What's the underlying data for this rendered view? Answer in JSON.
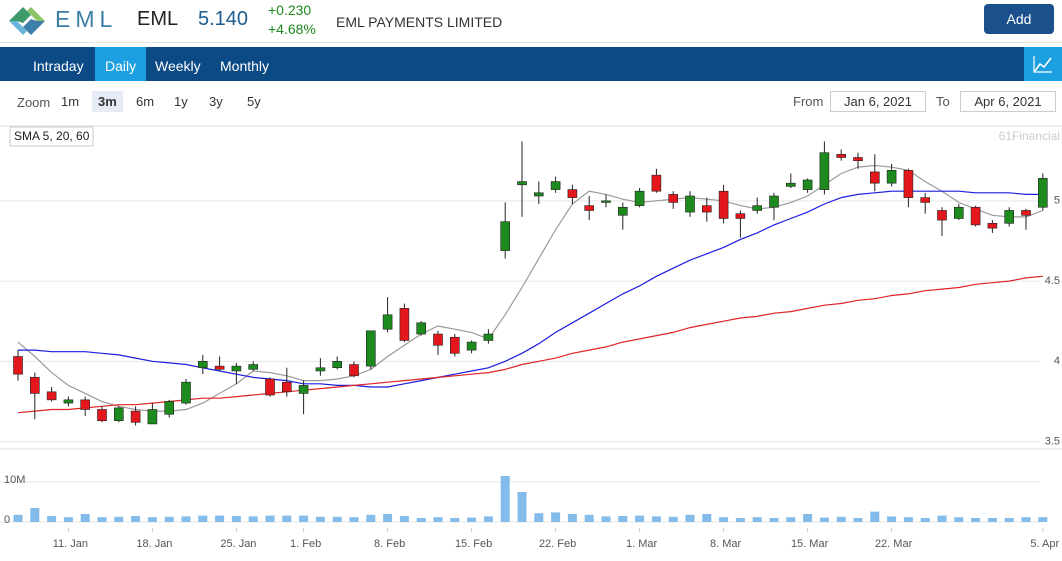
{
  "header": {
    "logo_text": "EML",
    "ticker": "EML",
    "price": "5.140",
    "change": "+0.230",
    "change_pct": "+4.68%",
    "company": "EML PAYMENTS LIMITED",
    "add_button": "Add"
  },
  "tabs": {
    "items": [
      "Intraday",
      "Daily",
      "Weekly",
      "Monthly"
    ],
    "active": 1
  },
  "zoom": {
    "label": "Zoom",
    "buttons": [
      "1m",
      "3m",
      "6m",
      "1y",
      "3y",
      "5y"
    ],
    "active": 1,
    "from_label": "From",
    "from": "Jan 6, 2021",
    "to_label": "To",
    "to": "Apr 6, 2021"
  },
  "chart_data": {
    "type": "candlestick",
    "legend_label": "SMA 5, 20, 60",
    "credit": "61Financial",
    "categories": [
      null,
      null,
      null,
      "11. Jan",
      null,
      null,
      null,
      null,
      "18. Jan",
      null,
      null,
      null,
      null,
      "25. Jan",
      null,
      null,
      null,
      "1. Feb",
      null,
      null,
      null,
      null,
      "8. Feb",
      null,
      null,
      null,
      null,
      "15. Feb",
      null,
      null,
      null,
      null,
      "22. Feb",
      null,
      null,
      null,
      null,
      "1. Mar",
      null,
      null,
      null,
      null,
      "8. Mar",
      null,
      null,
      null,
      null,
      "15. Mar",
      null,
      null,
      null,
      null,
      "22. Mar",
      null,
      null,
      null,
      null,
      null,
      null,
      null,
      null,
      "5. Apr"
    ],
    "open": [
      4.03,
      3.9,
      3.81,
      3.74,
      3.76,
      3.7,
      3.63,
      3.69,
      3.61,
      3.67,
      3.74,
      3.96,
      3.97,
      3.94,
      3.95,
      3.89,
      3.87,
      3.8,
      3.94,
      3.96,
      3.98,
      3.97,
      4.2,
      4.33,
      4.17,
      4.17,
      4.15,
      4.07,
      4.13,
      4.69,
      5.1,
      5.03,
      5.07,
      5.07,
      4.97,
      4.99,
      4.91,
      4.97,
      5.16,
      5.04,
      4.93,
      4.97,
      5.06,
      4.92,
      4.94,
      4.96,
      5.09,
      5.07,
      5.07,
      5.29,
      5.27,
      5.18,
      5.11,
      5.19,
      5.02,
      4.94,
      4.89,
      4.96,
      4.86,
      4.86,
      4.94,
      4.96
    ],
    "high": [
      4.07,
      3.93,
      3.84,
      3.78,
      3.78,
      3.72,
      3.72,
      3.72,
      3.74,
      3.76,
      3.89,
      4.04,
      4.03,
      3.99,
      4.0,
      3.9,
      3.96,
      3.88,
      4.02,
      4.03,
      4.0,
      4.19,
      4.4,
      4.36,
      4.25,
      4.19,
      4.17,
      4.13,
      4.2,
      4.99,
      5.37,
      5.12,
      5.15,
      5.1,
      5.03,
      5.04,
      4.99,
      5.08,
      5.2,
      5.06,
      5.06,
      5.02,
      5.1,
      4.94,
      5.02,
      5.05,
      5.17,
      5.14,
      5.37,
      5.32,
      5.3,
      5.29,
      5.23,
      5.2,
      5.05,
      4.96,
      4.98,
      4.97,
      4.88,
      4.96,
      4.95,
      5.17
    ],
    "low": [
      3.88,
      3.64,
      3.75,
      3.72,
      3.66,
      3.62,
      3.62,
      3.6,
      3.61,
      3.65,
      3.73,
      3.92,
      3.94,
      3.86,
      3.94,
      3.78,
      3.78,
      3.67,
      3.91,
      3.95,
      3.9,
      3.95,
      4.18,
      4.12,
      4.16,
      4.04,
      4.03,
      4.05,
      4.11,
      4.64,
      4.9,
      4.98,
      5.05,
      4.98,
      4.88,
      4.96,
      4.82,
      4.96,
      5.05,
      4.95,
      4.9,
      4.87,
      4.86,
      4.77,
      4.92,
      4.88,
      5.08,
      5.05,
      5.04,
      5.25,
      5.2,
      5.06,
      5.09,
      4.96,
      4.92,
      4.78,
      4.88,
      4.84,
      4.8,
      4.84,
      4.82,
      4.94
    ],
    "close": [
      3.92,
      3.8,
      3.76,
      3.76,
      3.7,
      3.63,
      3.71,
      3.62,
      3.7,
      3.75,
      3.87,
      4.0,
      3.95,
      3.97,
      3.98,
      3.79,
      3.81,
      3.85,
      3.96,
      4.0,
      3.91,
      4.19,
      4.29,
      4.13,
      4.24,
      4.1,
      4.05,
      4.12,
      4.17,
      4.87,
      5.12,
      5.05,
      5.12,
      5.02,
      4.94,
      5.0,
      4.96,
      5.06,
      5.06,
      4.99,
      5.03,
      4.93,
      4.89,
      4.89,
      4.97,
      5.03,
      5.11,
      5.13,
      5.3,
      5.27,
      5.25,
      5.11,
      5.19,
      5.02,
      4.99,
      4.88,
      4.96,
      4.85,
      4.83,
      4.94,
      4.91,
      5.14
    ],
    "up_color": "#1d8a1d",
    "down_color": "#e3171c",
    "series": [
      {
        "color": "#9a9a9a",
        "values": [
          4.12,
          4.03,
          3.93,
          3.85,
          3.8,
          3.75,
          3.72,
          3.7,
          3.69,
          3.69,
          3.7,
          3.74,
          3.8,
          3.86,
          3.94,
          3.93,
          3.91,
          3.88,
          3.88,
          3.89,
          3.91,
          3.95,
          4.03,
          4.1,
          4.17,
          4.22,
          4.2,
          4.18,
          4.14,
          4.29,
          4.46,
          4.64,
          4.82,
          4.98,
          5.06,
          5.04,
          5.01,
          4.99,
          5.0,
          5.01,
          5.02,
          5.01,
          5.0,
          4.97,
          4.95,
          4.96,
          4.99,
          5.03,
          5.1,
          5.17,
          5.21,
          5.22,
          5.21,
          5.19,
          5.12,
          5.06,
          4.99,
          4.95,
          4.91,
          4.9,
          4.9,
          4.94
        ]
      },
      {
        "color": "#1c1ce0",
        "values": [
          4.07,
          4.07,
          4.06,
          4.06,
          4.06,
          4.05,
          4.04,
          4.02,
          4.0,
          3.99,
          3.98,
          3.96,
          3.94,
          3.92,
          3.9,
          3.89,
          3.88,
          3.86,
          3.86,
          3.85,
          3.85,
          3.84,
          3.84,
          3.86,
          3.88,
          3.9,
          3.92,
          3.94,
          3.96,
          4.0,
          4.05,
          4.11,
          4.18,
          4.24,
          4.3,
          4.36,
          4.42,
          4.47,
          4.53,
          4.58,
          4.63,
          4.67,
          4.71,
          4.76,
          4.8,
          4.85,
          4.89,
          4.93,
          4.98,
          5.02,
          5.04,
          5.05,
          5.06,
          5.06,
          5.06,
          5.06,
          5.06,
          5.05,
          5.05,
          5.05,
          5.04,
          5.04
        ]
      },
      {
        "color": "#e02424",
        "values": [
          3.68,
          3.69,
          3.7,
          3.7,
          3.71,
          3.72,
          3.73,
          3.73,
          3.74,
          3.75,
          3.76,
          3.77,
          3.77,
          3.78,
          3.79,
          3.8,
          3.81,
          3.82,
          3.83,
          3.84,
          3.85,
          3.86,
          3.87,
          3.88,
          3.89,
          3.9,
          3.91,
          3.92,
          3.93,
          3.95,
          3.98,
          4.0,
          4.02,
          4.05,
          4.07,
          4.09,
          4.12,
          4.14,
          4.16,
          4.18,
          4.21,
          4.23,
          4.25,
          4.27,
          4.28,
          4.3,
          4.31,
          4.33,
          4.35,
          4.36,
          4.38,
          4.39,
          4.41,
          4.42,
          4.44,
          4.45,
          4.46,
          4.48,
          4.49,
          4.5,
          4.52,
          4.53
        ]
      }
    ],
    "ylim": [
      3.46,
      5.46
    ],
    "yticks": [
      3.5,
      4,
      4.5,
      5
    ],
    "grid": true,
    "volume": {
      "color": "#83bbea",
      "values": [
        1.8,
        3.5,
        1.5,
        1.2,
        2.0,
        1.2,
        1.3,
        1.5,
        1.2,
        1.3,
        1.4,
        1.6,
        1.6,
        1.5,
        1.4,
        1.6,
        1.6,
        1.6,
        1.3,
        1.3,
        1.2,
        1.8,
        2.0,
        1.5,
        1.0,
        1.2,
        1.0,
        1.1,
        1.4,
        11.5,
        7.5,
        2.2,
        2.4,
        2.0,
        1.8,
        1.4,
        1.5,
        1.6,
        1.4,
        1.3,
        1.8,
        2.0,
        1.2,
        1.0,
        1.2,
        1.0,
        1.2,
        2.0,
        1.1,
        1.3,
        1.0,
        2.6,
        1.4,
        1.2,
        1.0,
        1.6,
        1.2,
        1.0,
        1.0,
        1.0,
        1.2,
        1.2
      ],
      "ylim": [
        0,
        17.5
      ],
      "yticks": [
        0,
        {
          "value": 10,
          "label": "10M"
        }
      ]
    }
  }
}
